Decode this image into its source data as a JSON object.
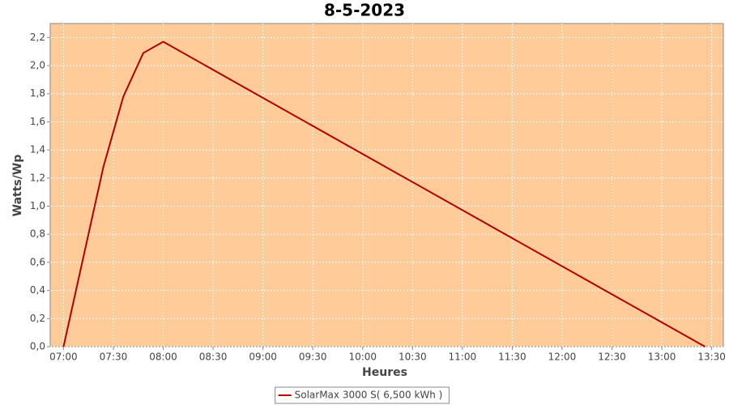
{
  "chart_data": {
    "type": "line",
    "title": "8-5-2023",
    "x_label": "Heures",
    "y_label": "Watts/Wp",
    "x": [
      "07:00",
      "07:12",
      "07:24",
      "07:36",
      "07:48",
      "08:00",
      "13:26"
    ],
    "series": [
      {
        "name": "SolarMax 3000 S( 6,500 kWh )",
        "color": "#b00000",
        "values": [
          0,
          0.64,
          1.28,
          1.78,
          2.09,
          2.17,
          0
        ]
      }
    ],
    "xlim": [
      "06:52",
      "13:37"
    ],
    "xticks": [
      "07:00",
      "07:30",
      "08:00",
      "08:30",
      "09:00",
      "09:30",
      "10:00",
      "10:30",
      "11:00",
      "11:30",
      "12:00",
      "12:30",
      "13:00",
      "13:30"
    ],
    "ylim": [
      0,
      2.3
    ],
    "yticks": [
      {
        "value": 0,
        "label": "0,0"
      },
      {
        "value": 0.2,
        "label": "0,2"
      },
      {
        "value": 0.4,
        "label": "0,4"
      },
      {
        "value": 0.6,
        "label": "0,6"
      },
      {
        "value": 0.8,
        "label": "0,8"
      },
      {
        "value": 1.0,
        "label": "1,0"
      },
      {
        "value": 1.2,
        "label": "1,2"
      },
      {
        "value": 1.4,
        "label": "1,4"
      },
      {
        "value": 1.6,
        "label": "1,6"
      },
      {
        "value": 1.8,
        "label": "1,8"
      },
      {
        "value": 2.0,
        "label": "2,0"
      },
      {
        "value": 2.2,
        "label": "2,2"
      }
    ],
    "grid": true,
    "plot_background": "#ffcc99",
    "legend": "bottom"
  }
}
